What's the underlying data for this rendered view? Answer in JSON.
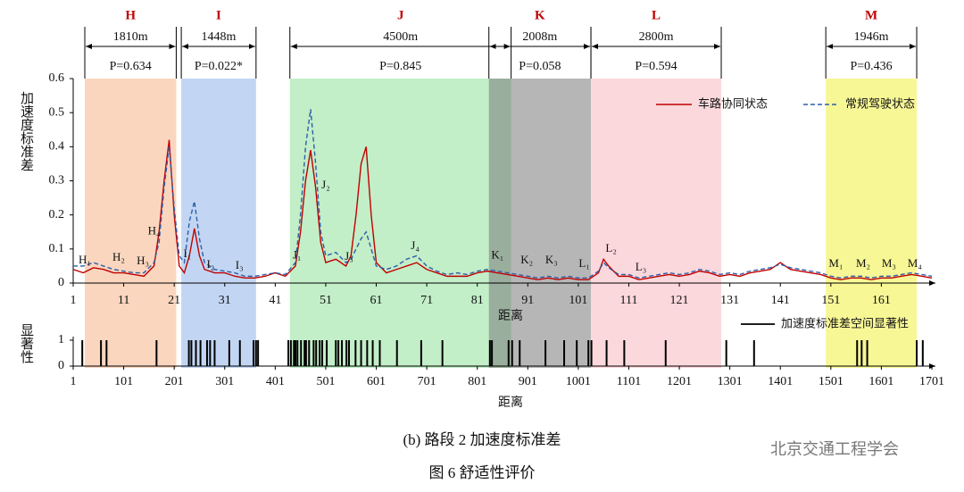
{
  "chart_data": [
    {
      "type": "line",
      "ylabel": "加速度标准差",
      "xlabel": "距离",
      "xlim": [
        1,
        171
      ],
      "ylim": [
        0,
        0.6
      ],
      "xticks": [
        1,
        11,
        21,
        31,
        41,
        51,
        61,
        71,
        81,
        91,
        101,
        111,
        121,
        131,
        141,
        151,
        161
      ],
      "yticks": [
        0,
        0.1,
        0.2,
        0.3,
        0.4,
        0.5,
        0.6
      ],
      "legend": "upper right",
      "x": [
        1,
        3,
        5,
        7,
        9,
        11,
        13,
        15,
        17,
        18,
        19,
        20,
        21,
        22,
        23,
        24,
        25,
        26,
        27,
        29,
        31,
        33,
        35,
        37,
        39,
        41,
        43,
        45,
        46,
        47,
        48,
        49,
        50,
        51,
        53,
        55,
        56,
        57,
        58,
        59,
        60,
        61,
        63,
        65,
        67,
        69,
        71,
        73,
        75,
        77,
        79,
        81,
        83,
        85,
        87,
        89,
        91,
        93,
        95,
        97,
        99,
        101,
        103,
        105,
        106,
        107,
        109,
        111,
        113,
        115,
        117,
        119,
        121,
        123,
        125,
        127,
        129,
        131,
        133,
        135,
        137,
        139,
        141,
        143,
        145,
        147,
        149,
        151,
        153,
        155,
        157,
        159,
        161,
        163,
        165,
        167,
        169,
        171
      ],
      "series": [
        {
          "name": "车路协同状态",
          "color": "#c00000",
          "dash": false,
          "values": [
            0.04,
            0.03,
            0.045,
            0.04,
            0.03,
            0.03,
            0.025,
            0.02,
            0.05,
            0.15,
            0.3,
            0.42,
            0.2,
            0.05,
            0.03,
            0.08,
            0.16,
            0.08,
            0.04,
            0.03,
            0.03,
            0.02,
            0.015,
            0.015,
            0.02,
            0.03,
            0.02,
            0.05,
            0.15,
            0.3,
            0.39,
            0.28,
            0.12,
            0.06,
            0.07,
            0.05,
            0.08,
            0.2,
            0.35,
            0.4,
            0.2,
            0.06,
            0.03,
            0.04,
            0.05,
            0.06,
            0.04,
            0.03,
            0.02,
            0.02,
            0.02,
            0.03,
            0.035,
            0.03,
            0.025,
            0.02,
            0.015,
            0.01,
            0.015,
            0.01,
            0.015,
            0.01,
            0.01,
            0.03,
            0.07,
            0.05,
            0.02,
            0.02,
            0.01,
            0.015,
            0.02,
            0.025,
            0.02,
            0.025,
            0.035,
            0.03,
            0.02,
            0.025,
            0.02,
            0.03,
            0.035,
            0.04,
            0.06,
            0.04,
            0.035,
            0.03,
            0.025,
            0.015,
            0.01,
            0.015,
            0.015,
            0.01,
            0.015,
            0.015,
            0.02,
            0.025,
            0.02,
            0.015
          ]
        },
        {
          "name": "常规驾驶状态",
          "color": "#2e5fa8",
          "dash": true,
          "values": [
            0.05,
            0.05,
            0.06,
            0.05,
            0.04,
            0.035,
            0.03,
            0.03,
            0.06,
            0.12,
            0.28,
            0.4,
            0.22,
            0.08,
            0.06,
            0.18,
            0.24,
            0.13,
            0.06,
            0.04,
            0.035,
            0.03,
            0.02,
            0.02,
            0.025,
            0.03,
            0.025,
            0.06,
            0.2,
            0.4,
            0.51,
            0.35,
            0.15,
            0.08,
            0.09,
            0.06,
            0.07,
            0.1,
            0.13,
            0.15,
            0.1,
            0.05,
            0.04,
            0.05,
            0.07,
            0.08,
            0.05,
            0.035,
            0.025,
            0.03,
            0.025,
            0.035,
            0.04,
            0.035,
            0.03,
            0.025,
            0.02,
            0.015,
            0.02,
            0.015,
            0.02,
            0.015,
            0.015,
            0.035,
            0.06,
            0.045,
            0.025,
            0.025,
            0.015,
            0.02,
            0.025,
            0.03,
            0.025,
            0.03,
            0.04,
            0.035,
            0.025,
            0.03,
            0.025,
            0.035,
            0.04,
            0.045,
            0.055,
            0.045,
            0.04,
            0.035,
            0.03,
            0.02,
            0.015,
            0.02,
            0.02,
            0.015,
            0.02,
            0.02,
            0.025,
            0.03,
            0.025,
            0.02
          ]
        }
      ],
      "regions": [
        {
          "label": "H",
          "distance": "1810m",
          "p": "P=0.634",
          "start": 3.3,
          "end": 21.4,
          "color": "#f6b58a"
        },
        {
          "label": "I",
          "distance": "1448m",
          "p": "P=0.022*",
          "start": 22.4,
          "end": 37.2,
          "color": "#8fb5ea"
        },
        {
          "label": "J",
          "distance": "4500m",
          "p": "P=0.845",
          "start": 43.9,
          "end": 87.7,
          "color": "#8fe09a"
        },
        {
          "label": "K",
          "distance": "2008m",
          "p": "P=0.058",
          "start": 83.3,
          "end": 103.5,
          "color": "#7a7a7a"
        },
        {
          "label": "L",
          "distance": "2800m",
          "p": "P=0.594",
          "start": 103.5,
          "end": 129.3,
          "color": "#f7b8c0"
        },
        {
          "label": "M",
          "distance": "1946m",
          "p": "P=0.436",
          "start": 150,
          "end": 168,
          "color": "#f0f040"
        }
      ],
      "annotations": [
        {
          "text": "H₁",
          "x": 3.3,
          "y": 0.065
        },
        {
          "text": "H₂",
          "x": 10,
          "y": 0.073
        },
        {
          "text": "H₃",
          "x": 14.8,
          "y": 0.063
        },
        {
          "text": "H₄",
          "x": 17,
          "y": 0.15
        },
        {
          "text": "I₁",
          "x": 23.6,
          "y": 0.084
        },
        {
          "text": "I₂",
          "x": 28.2,
          "y": 0.052
        },
        {
          "text": "I₃",
          "x": 33.9,
          "y": 0.05
        },
        {
          "text": "J₁",
          "x": 45.3,
          "y": 0.08
        },
        {
          "text": "J₂",
          "x": 51,
          "y": 0.285
        },
        {
          "text": "J₃",
          "x": 55.6,
          "y": 0.076
        },
        {
          "text": "J₄",
          "x": 68.7,
          "y": 0.107
        },
        {
          "text": "K₁",
          "x": 85,
          "y": 0.08
        },
        {
          "text": "K₂",
          "x": 90.8,
          "y": 0.065
        },
        {
          "text": "K₃",
          "x": 95.7,
          "y": 0.065
        },
        {
          "text": "L₁",
          "x": 102.2,
          "y": 0.055
        },
        {
          "text": "L₂",
          "x": 107.5,
          "y": 0.1
        },
        {
          "text": "L₃",
          "x": 113.4,
          "y": 0.045
        },
        {
          "text": "M₁",
          "x": 152,
          "y": 0.055
        },
        {
          "text": "M₂",
          "x": 157.4,
          "y": 0.055
        },
        {
          "text": "M₃",
          "x": 162.5,
          "y": 0.055
        },
        {
          "text": "M₄",
          "x": 167.6,
          "y": 0.055
        }
      ]
    },
    {
      "type": "bar",
      "ylabel": "显著性",
      "xlabel": "距离",
      "xlim": [
        1,
        1701
      ],
      "ylim": [
        0,
        1
      ],
      "xticks": [
        1,
        101,
        201,
        301,
        401,
        501,
        601,
        701,
        801,
        901,
        1001,
        1101,
        1201,
        1301,
        1401,
        1501,
        1601,
        1701
      ],
      "yticks": [
        0,
        1
      ],
      "legend": "upper right",
      "series": [
        {
          "name": "加速度标准差空间显著性",
          "color": "#000000"
        }
      ],
      "x": [
        19,
        56,
        67,
        166,
        230,
        235,
        244,
        253,
        266,
        272,
        281,
        310,
        331,
        358,
        363,
        367,
        427,
        432,
        438,
        441,
        445,
        452,
        459,
        462,
        468,
        477,
        482,
        489,
        494,
        503,
        521,
        526,
        533,
        542,
        547,
        560,
        571,
        583,
        594,
        608,
        642,
        690,
        732,
        826,
        830,
        863,
        870,
        885,
        936,
        973,
        998,
        1021,
        1027,
        1057,
        1092,
        1174,
        1294,
        1349,
        1553,
        1562,
        1573,
        1671,
        1683
      ],
      "values": [
        1,
        1,
        1,
        1,
        1,
        1,
        1,
        1,
        1,
        1,
        1,
        1,
        1,
        1,
        1,
        1,
        1,
        1,
        1,
        1,
        1,
        1,
        1,
        1,
        1,
        1,
        1,
        1,
        1,
        1,
        1,
        1,
        1,
        1,
        1,
        1,
        1,
        1,
        1,
        1,
        1,
        1,
        1,
        1,
        1,
        1,
        1,
        1,
        1,
        1,
        1,
        1,
        1,
        1,
        1,
        1,
        1,
        1,
        1,
        1,
        1,
        1,
        1
      ]
    }
  ],
  "caption": "(b) 路段 2 加速度标准差",
  "figure_title": "图 6 舒适性评价",
  "watermark": "北京交通工程学会"
}
